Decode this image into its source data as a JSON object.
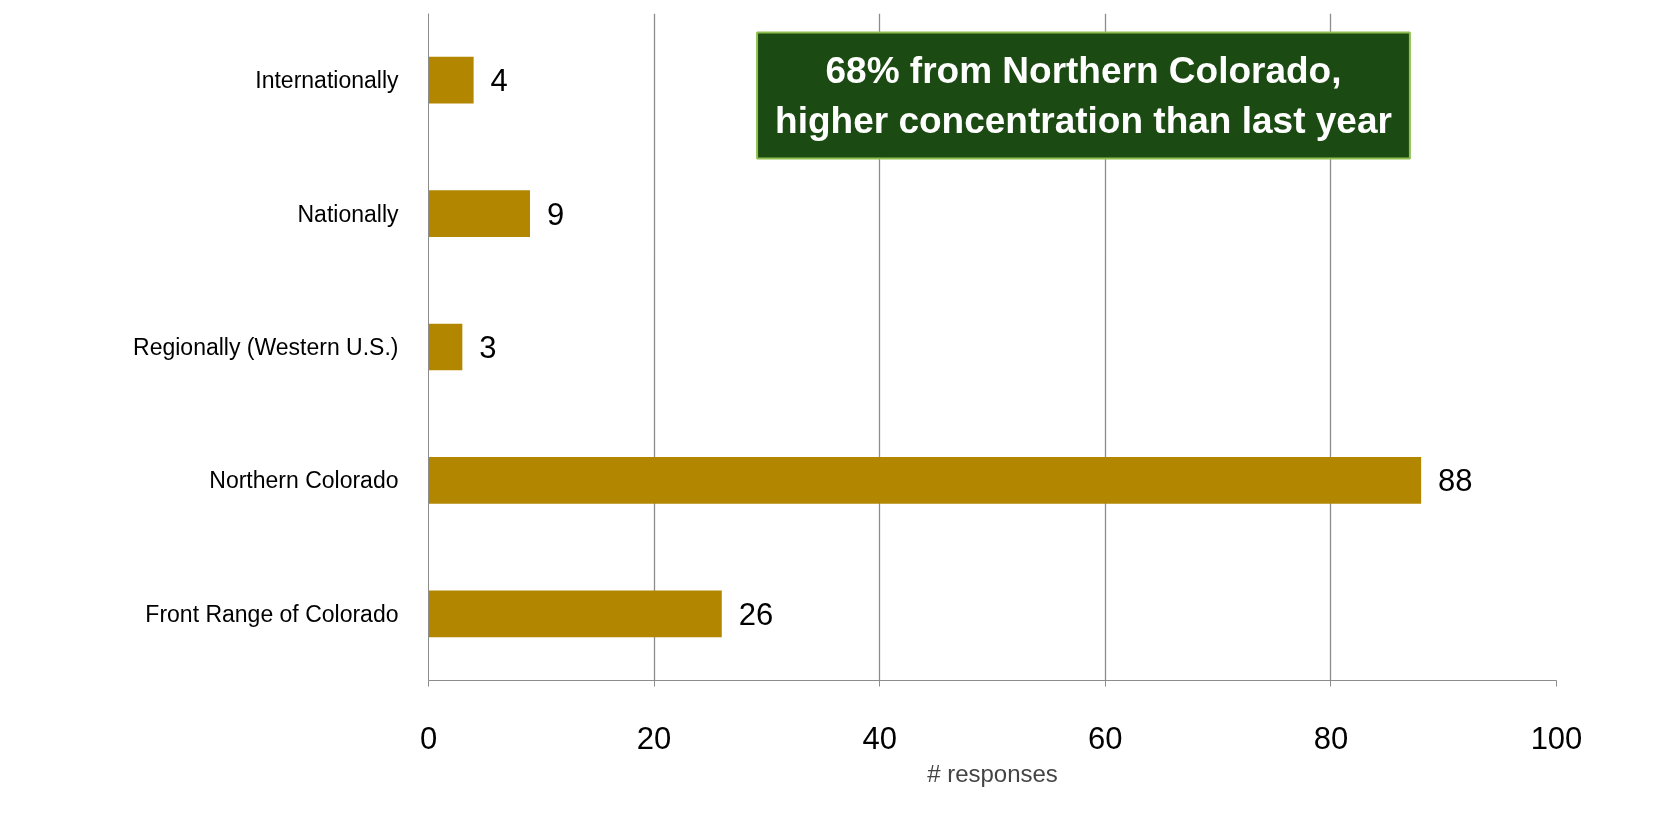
{
  "chart_data": {
    "type": "bar",
    "orientation": "horizontal",
    "xlabel": "# responses",
    "categories": [
      "Internationally",
      "Nationally",
      "Regionally (Western U.S.)",
      "Northern Colorado",
      "Front Range of Colorado"
    ],
    "values": [
      4,
      9,
      3,
      88,
      26
    ],
    "color": "#b38600",
    "xlim": [
      0,
      100
    ],
    "xticks": [
      0,
      20,
      40,
      60,
      80,
      100
    ],
    "grid": "x",
    "data_labels": true,
    "annotations": [
      "68% from Northern Colorado,\nhigher concentration than last year"
    ]
  }
}
